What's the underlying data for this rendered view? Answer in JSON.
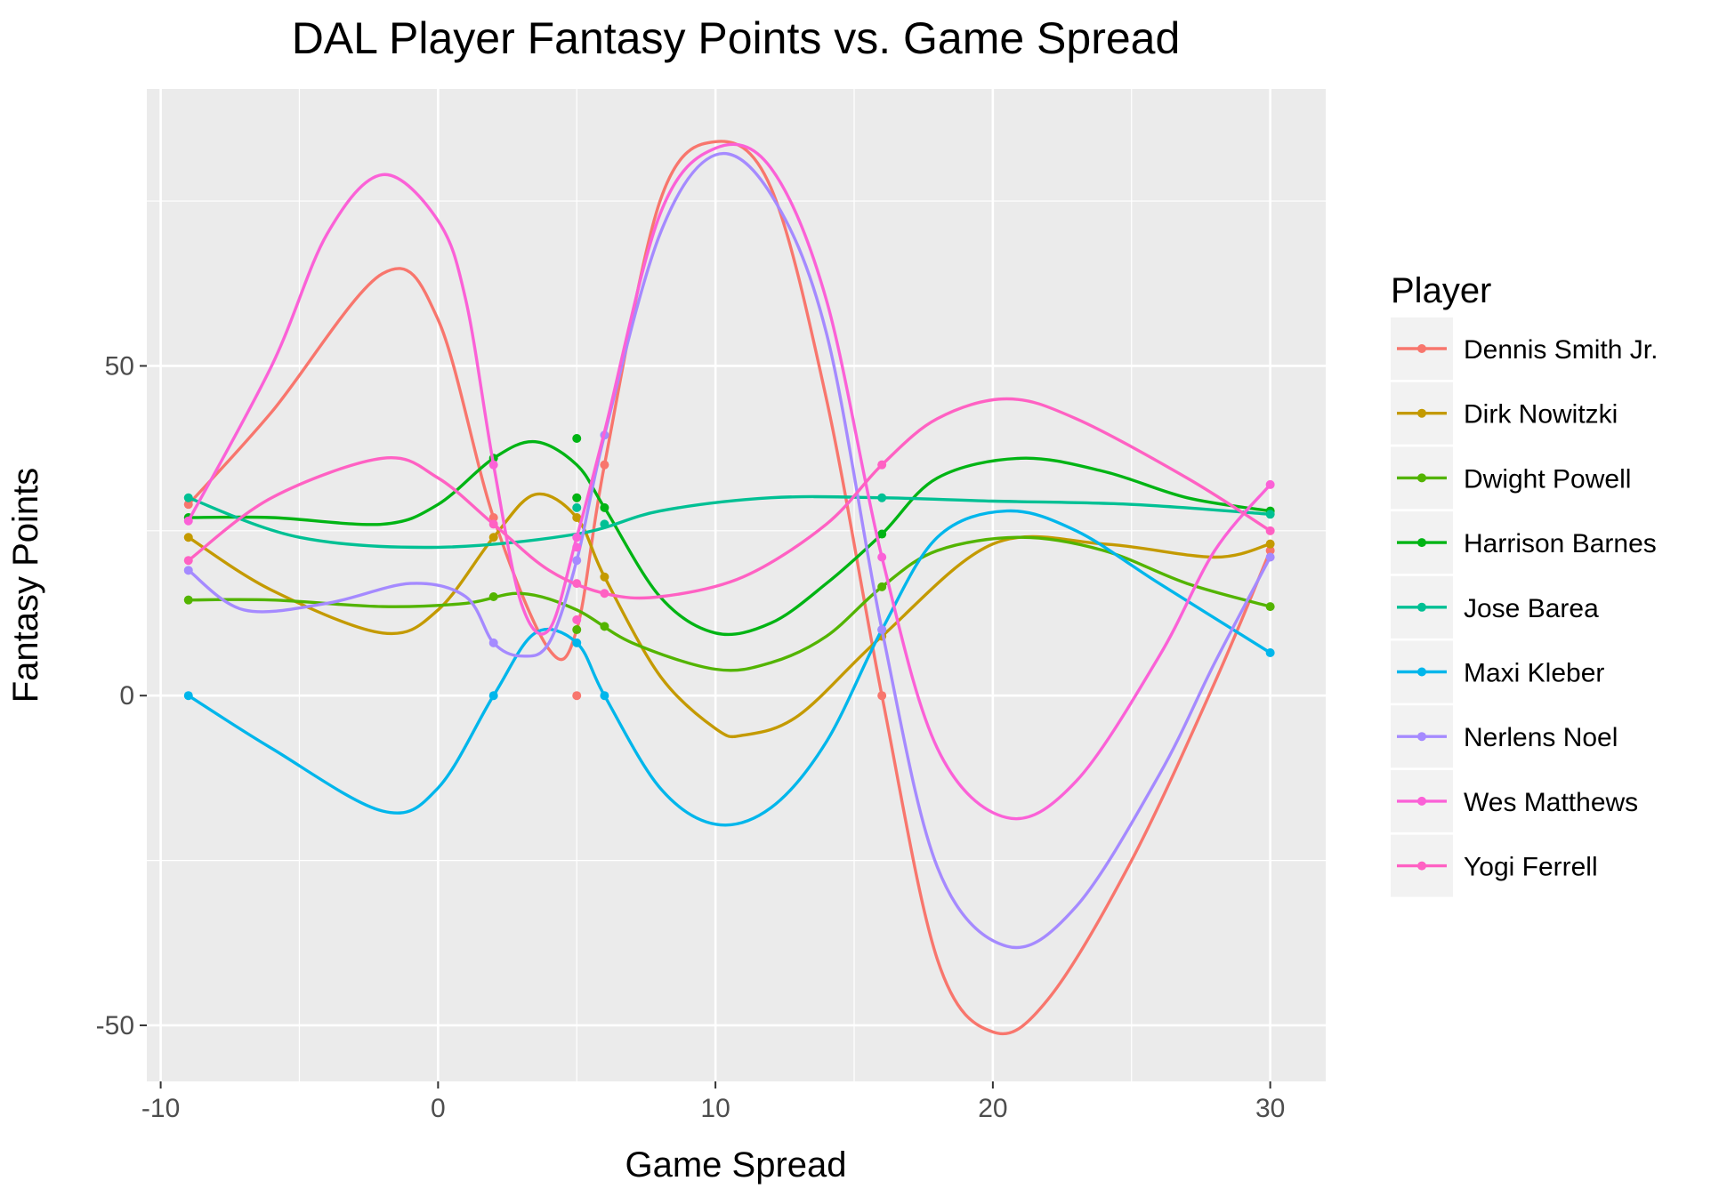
{
  "chart_data": {
    "type": "line",
    "title": "DAL Player Fantasy Points vs. Game Spread",
    "xlabel": "Game Spread",
    "ylabel": "Fantasy Points",
    "xlim": [
      -10.5,
      32
    ],
    "ylim": [
      -58.5,
      92
    ],
    "x_ticks": [
      -10,
      0,
      10,
      20,
      30
    ],
    "x_tick_labels": [
      "-10",
      "0",
      "10",
      "20",
      "30"
    ],
    "y_ticks": [
      -50,
      0,
      50
    ],
    "y_tick_labels": [
      "-50",
      "0",
      "50"
    ],
    "grid": true,
    "legend": {
      "title": "Player",
      "position": "right"
    },
    "series": [
      {
        "name": "Dennis Smith Jr.",
        "color": "#F8766D",
        "points": [
          [
            -9,
            29
          ],
          [
            2,
            27
          ],
          [
            5,
            0
          ],
          [
            5,
            30
          ],
          [
            6,
            35
          ],
          [
            16,
            0
          ],
          [
            30,
            22
          ]
        ],
        "curve": [
          [
            -9,
            29
          ],
          [
            -6,
            43
          ],
          [
            -2,
            64
          ],
          [
            0,
            57
          ],
          [
            2,
            27
          ],
          [
            4,
            7
          ],
          [
            5,
            10
          ],
          [
            6,
            35
          ],
          [
            8,
            75
          ],
          [
            10,
            84
          ],
          [
            12,
            77
          ],
          [
            14,
            45
          ],
          [
            16,
            0
          ],
          [
            18,
            -40
          ],
          [
            20,
            -51
          ],
          [
            22,
            -46
          ],
          [
            25,
            -25
          ],
          [
            28,
            2
          ],
          [
            30,
            22
          ]
        ]
      },
      {
        "name": "Dirk Nowitzki",
        "color": "#C49A00",
        "points": [
          [
            -9,
            24
          ],
          [
            2,
            24
          ],
          [
            5,
            27
          ],
          [
            6,
            18
          ],
          [
            16,
            9
          ],
          [
            30,
            23
          ]
        ],
        "curve": [
          [
            -9,
            24
          ],
          [
            -6,
            16
          ],
          [
            -2,
            9.5
          ],
          [
            0,
            13
          ],
          [
            2,
            24
          ],
          [
            3.5,
            30.5
          ],
          [
            5,
            27
          ],
          [
            6,
            18
          ],
          [
            8,
            3
          ],
          [
            10,
            -5
          ],
          [
            11,
            -6
          ],
          [
            13,
            -3
          ],
          [
            16,
            9
          ],
          [
            20,
            23
          ],
          [
            24,
            23
          ],
          [
            28,
            21
          ],
          [
            30,
            23
          ]
        ]
      },
      {
        "name": "Dwight Powell",
        "color": "#53B400",
        "points": [
          [
            -9,
            14.5
          ],
          [
            2,
            15
          ],
          [
            5,
            10
          ],
          [
            6,
            10.5
          ],
          [
            16,
            16.5
          ],
          [
            30,
            13.5
          ]
        ],
        "curve": [
          [
            -9,
            14.5
          ],
          [
            -6,
            14.5
          ],
          [
            -2,
            13.5
          ],
          [
            1,
            14
          ],
          [
            3,
            15.5
          ],
          [
            5,
            13
          ],
          [
            7,
            8
          ],
          [
            10,
            4
          ],
          [
            12,
            5
          ],
          [
            14,
            9
          ],
          [
            16,
            16.5
          ],
          [
            18,
            22
          ],
          [
            21,
            24
          ],
          [
            24,
            22
          ],
          [
            27,
            17
          ],
          [
            30,
            13.5
          ]
        ]
      },
      {
        "name": "Harrison Barnes",
        "color": "#00B414",
        "points": [
          [
            -9,
            27
          ],
          [
            2,
            36
          ],
          [
            5,
            30
          ],
          [
            5,
            39
          ],
          [
            6,
            28.5
          ],
          [
            16,
            24.5
          ],
          [
            30,
            28
          ]
        ],
        "curve": [
          [
            -9,
            27
          ],
          [
            -6,
            27
          ],
          [
            -2,
            26
          ],
          [
            0,
            29
          ],
          [
            2,
            36
          ],
          [
            3.5,
            38.5
          ],
          [
            5,
            35
          ],
          [
            6,
            28.5
          ],
          [
            8,
            15
          ],
          [
            10,
            9.5
          ],
          [
            12,
            11
          ],
          [
            14,
            17
          ],
          [
            16,
            24.5
          ],
          [
            18,
            33
          ],
          [
            21,
            36
          ],
          [
            24,
            34
          ],
          [
            27,
            30
          ],
          [
            30,
            28
          ]
        ]
      },
      {
        "name": "Jose Barea",
        "color": "#00C094",
        "points": [
          [
            -9,
            30
          ],
          [
            5,
            28.5
          ],
          [
            6,
            26
          ],
          [
            16,
            30
          ],
          [
            30,
            27.5
          ]
        ],
        "curve": [
          [
            -9,
            30
          ],
          [
            -5,
            24
          ],
          [
            0,
            22.5
          ],
          [
            5,
            24.5
          ],
          [
            8,
            28
          ],
          [
            12,
            30
          ],
          [
            16,
            30
          ],
          [
            20,
            29.5
          ],
          [
            25,
            29
          ],
          [
            30,
            27.5
          ]
        ]
      },
      {
        "name": "Maxi Kleber",
        "color": "#00B6EB",
        "points": [
          [
            -9,
            0
          ],
          [
            2,
            0
          ],
          [
            5,
            8
          ],
          [
            6,
            0
          ],
          [
            16,
            10
          ],
          [
            30,
            6.5
          ]
        ],
        "curve": [
          [
            -9,
            0
          ],
          [
            -6,
            -8
          ],
          [
            -2,
            -17.5
          ],
          [
            0,
            -14
          ],
          [
            2,
            0
          ],
          [
            3.5,
            9.5
          ],
          [
            5,
            8
          ],
          [
            6,
            0
          ],
          [
            8,
            -14
          ],
          [
            10,
            -19.5
          ],
          [
            12,
            -17
          ],
          [
            14,
            -7
          ],
          [
            16,
            10
          ],
          [
            18,
            24
          ],
          [
            20.5,
            28
          ],
          [
            23,
            25
          ],
          [
            26,
            17
          ],
          [
            30,
            6.5
          ]
        ]
      },
      {
        "name": "Nerlens Noel",
        "color": "#A58AFF",
        "points": [
          [
            -9,
            19
          ],
          [
            2,
            8
          ],
          [
            5,
            20.5
          ],
          [
            6,
            39.5
          ],
          [
            16,
            10
          ],
          [
            30,
            21
          ]
        ],
        "curve": [
          [
            -9,
            19
          ],
          [
            -7,
            13
          ],
          [
            -4,
            14
          ],
          [
            -1,
            17
          ],
          [
            1,
            15
          ],
          [
            2,
            8
          ],
          [
            3,
            6
          ],
          [
            4,
            8
          ],
          [
            5,
            20.5
          ],
          [
            6,
            39.5
          ],
          [
            8,
            70
          ],
          [
            10,
            82
          ],
          [
            12,
            76
          ],
          [
            14,
            55
          ],
          [
            16,
            10
          ],
          [
            18,
            -26
          ],
          [
            20.5,
            -38
          ],
          [
            23,
            -32
          ],
          [
            26,
            -12
          ],
          [
            28,
            5
          ],
          [
            30,
            21
          ]
        ]
      },
      {
        "name": "Wes Matthews",
        "color": "#FB61D7",
        "points": [
          [
            -9,
            26.5
          ],
          [
            2,
            35
          ],
          [
            5,
            24
          ],
          [
            5,
            22.5
          ],
          [
            16,
            21
          ],
          [
            30,
            32
          ]
        ],
        "curve": [
          [
            -9,
            26.5
          ],
          [
            -6,
            50
          ],
          [
            -4,
            70
          ],
          [
            -2,
            79
          ],
          [
            0,
            72
          ],
          [
            1,
            60
          ],
          [
            2,
            35
          ],
          [
            3,
            14
          ],
          [
            4,
            10
          ],
          [
            5,
            24
          ],
          [
            6,
            40
          ],
          [
            8,
            73
          ],
          [
            10,
            83
          ],
          [
            12,
            80
          ],
          [
            14,
            60
          ],
          [
            16,
            21
          ],
          [
            18,
            -8
          ],
          [
            20.5,
            -18.5
          ],
          [
            23,
            -13
          ],
          [
            26,
            6
          ],
          [
            28,
            22
          ],
          [
            30,
            32
          ]
        ]
      },
      {
        "name": "Yogi Ferrell",
        "color": "#FF61C3",
        "points": [
          [
            -9,
            20.5
          ],
          [
            2,
            26
          ],
          [
            5,
            11.5
          ],
          [
            5,
            17
          ],
          [
            6,
            15.5
          ],
          [
            16,
            35
          ],
          [
            30,
            25
          ]
        ],
        "curve": [
          [
            -9,
            20.5
          ],
          [
            -6,
            30
          ],
          [
            -2,
            36
          ],
          [
            0,
            33
          ],
          [
            2,
            26
          ],
          [
            4,
            19
          ],
          [
            6,
            15.5
          ],
          [
            8,
            15
          ],
          [
            11,
            18
          ],
          [
            14,
            26
          ],
          [
            16,
            35
          ],
          [
            18,
            42
          ],
          [
            20.5,
            45
          ],
          [
            23,
            42
          ],
          [
            27,
            33
          ],
          [
            30,
            25
          ]
        ]
      }
    ]
  }
}
